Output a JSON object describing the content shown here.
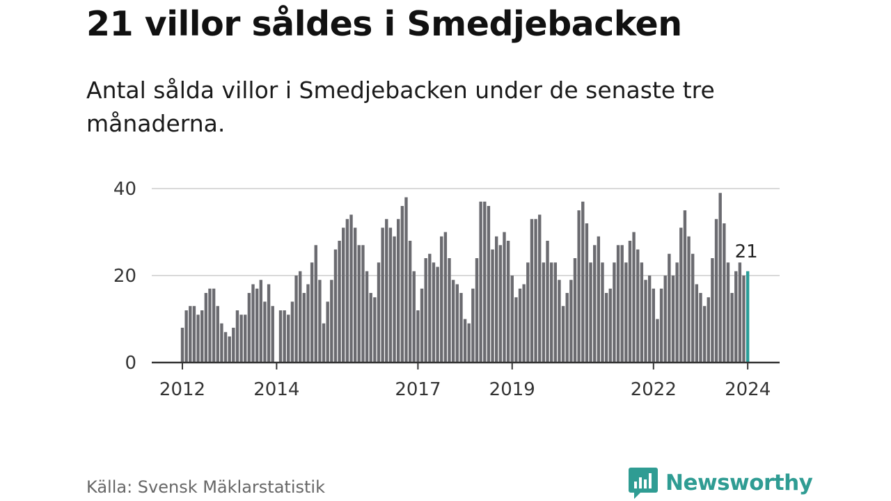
{
  "title": "21 villor såldes i Smedjebacken",
  "subtitle": "Antal sålda villor i Smedjebacken under de senaste tre månaderna.",
  "source": "Källa: Svensk Mäklarstatistik",
  "brand": "Newsworthy",
  "colors": {
    "bar": "#6b6b70",
    "highlight": "#2a9d98",
    "grid": "#d9d9d9",
    "axis": "#333333",
    "brand": "#2f9c93"
  },
  "chart_data": {
    "type": "bar",
    "title": "21 villor såldes i Smedjebacken",
    "ylabel": "",
    "xlabel": "",
    "ylim": [
      0,
      40
    ],
    "yticks": [
      0,
      20,
      40
    ],
    "grid": true,
    "start": "2012-01",
    "xtick_labels": [
      "2012",
      "2014",
      "2017",
      "2019",
      "2022",
      "2024"
    ],
    "xtick_index": [
      0,
      24,
      60,
      84,
      120,
      144
    ],
    "values": [
      8,
      12,
      13,
      13,
      11,
      12,
      16,
      17,
      17,
      13,
      9,
      7,
      6,
      8,
      12,
      11,
      11,
      16,
      18,
      17,
      19,
      14,
      18,
      13,
      null,
      12,
      12,
      11,
      14,
      20,
      21,
      16,
      18,
      23,
      27,
      19,
      9,
      14,
      19,
      26,
      28,
      31,
      33,
      34,
      31,
      27,
      27,
      21,
      16,
      15,
      23,
      31,
      33,
      31,
      29,
      33,
      36,
      38,
      28,
      21,
      12,
      17,
      24,
      25,
      23,
      22,
      29,
      30,
      24,
      19,
      18,
      16,
      10,
      9,
      17,
      24,
      37,
      37,
      36,
      26,
      29,
      27,
      30,
      28,
      20,
      15,
      17,
      18,
      23,
      33,
      33,
      34,
      23,
      28,
      23,
      23,
      19,
      13,
      16,
      19,
      24,
      35,
      37,
      32,
      23,
      27,
      29,
      23,
      16,
      17,
      23,
      27,
      27,
      23,
      28,
      30,
      26,
      23,
      19,
      20,
      17,
      10,
      17,
      20,
      25,
      20,
      23,
      31,
      35,
      29,
      25,
      18,
      16,
      13,
      15,
      24,
      33,
      39,
      32,
      23,
      16,
      21,
      23,
      20,
      21
    ],
    "highlight_index": 144,
    "annotation": "21"
  }
}
